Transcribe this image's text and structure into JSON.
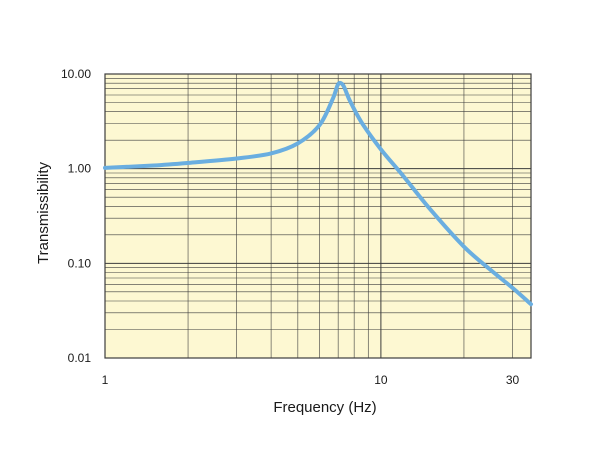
{
  "chart_data": {
    "type": "line",
    "title": "",
    "xlabel": "Frequency (Hz)",
    "ylabel": "Transmissibility",
    "xscale": "log",
    "yscale": "log",
    "xlim": [
      1,
      35
    ],
    "ylim": [
      0.01,
      10
    ],
    "x_ticks": [
      {
        "value": 1,
        "label": "1"
      },
      {
        "value": 10,
        "label": "10"
      },
      {
        "value": 30,
        "label": "30"
      }
    ],
    "y_ticks": [
      {
        "value": 0.01,
        "label": "0.01"
      },
      {
        "value": 0.1,
        "label": "0.10"
      },
      {
        "value": 1,
        "label": "1.00"
      },
      {
        "value": 10,
        "label": "10.00"
      }
    ],
    "grid": true,
    "legend": "none",
    "colors": {
      "plot_background": "#fdf8d2",
      "grid": "#3c3c3c",
      "line": "#6aaee0"
    },
    "series": [
      {
        "values_x": [
          1,
          1.5,
          2,
          3,
          4,
          5,
          6,
          6.7,
          7,
          7.3,
          7.7,
          8.5,
          10,
          12,
          15,
          20,
          25,
          30,
          35
        ],
        "values_y": [
          1.02,
          1.08,
          1.15,
          1.28,
          1.45,
          1.85,
          2.9,
          5.5,
          7.8,
          7.6,
          5.3,
          3.1,
          1.6,
          0.85,
          0.38,
          0.15,
          0.085,
          0.055,
          0.037
        ]
      }
    ]
  }
}
